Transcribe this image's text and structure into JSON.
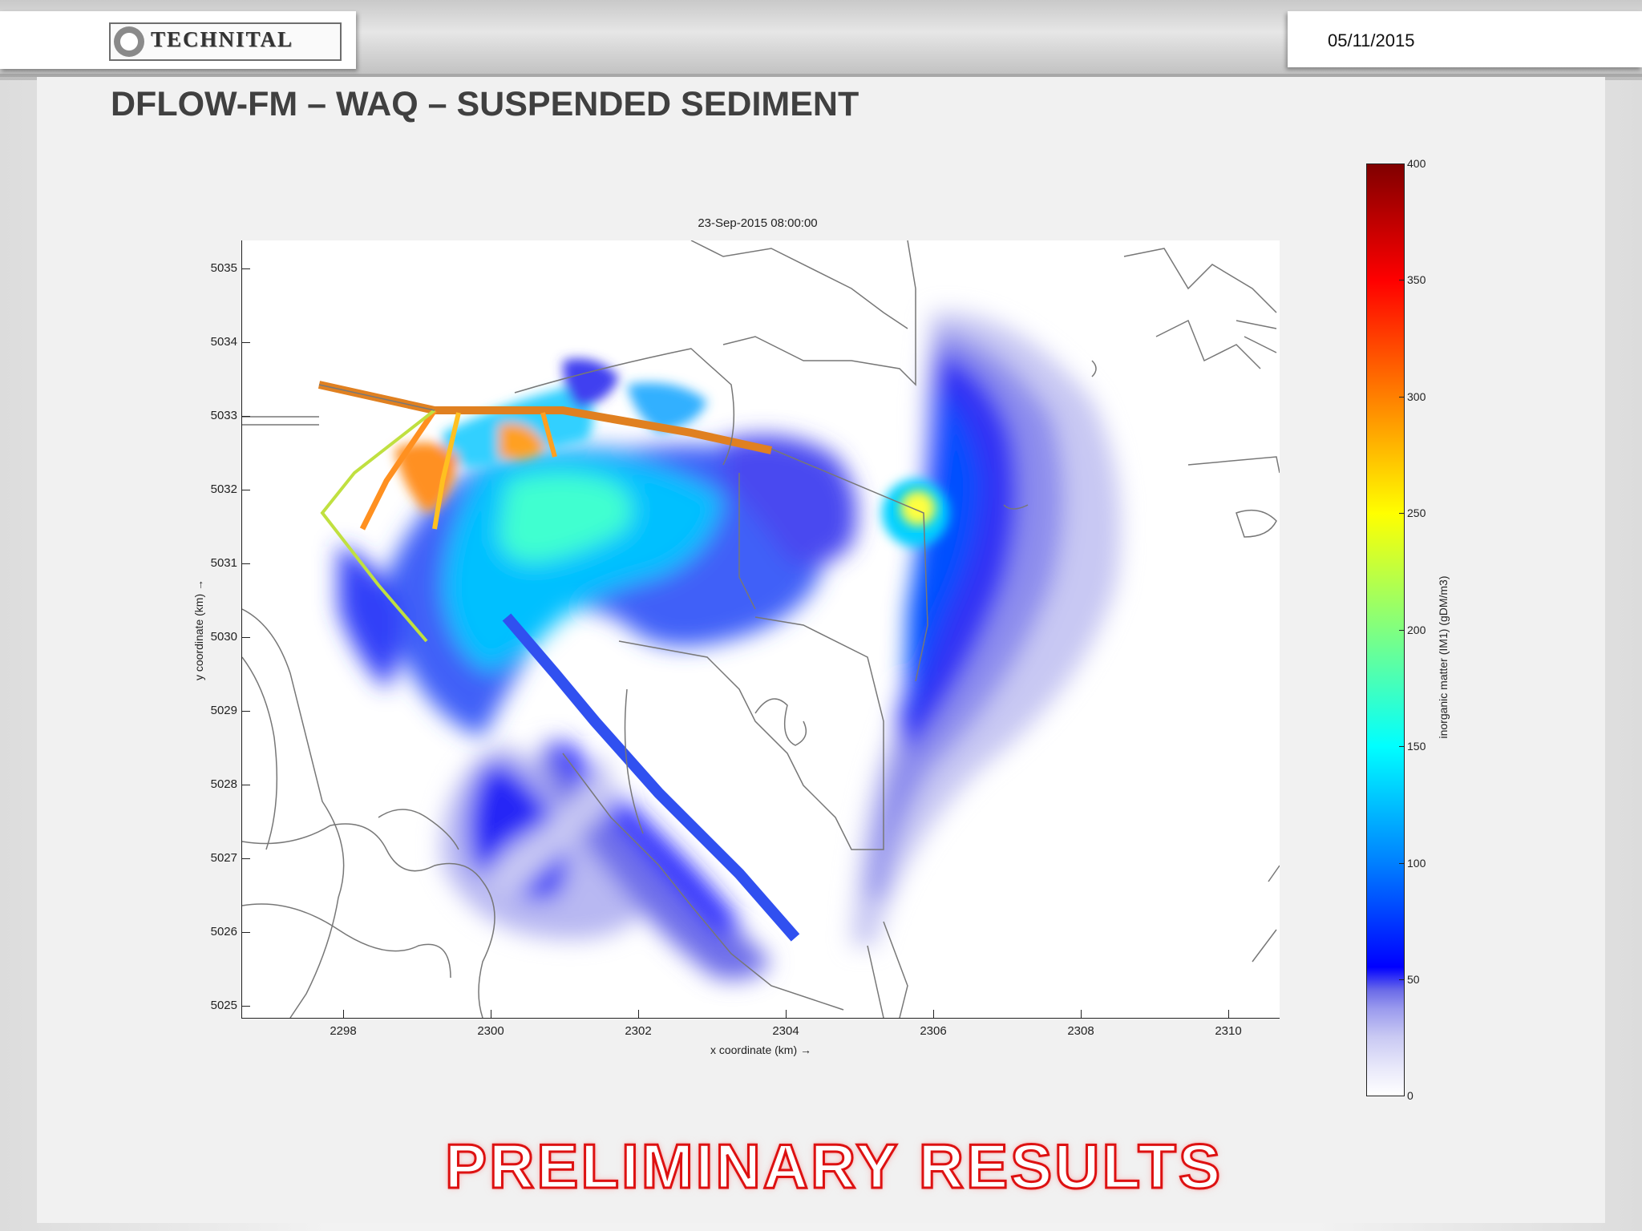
{
  "header": {
    "logo_text": "TECHNITAL",
    "date": "05/11/2015",
    "title": "DFLOW-FM – WAQ – SUSPENDED SEDIMENT"
  },
  "watermark": "PRELIMINARY RESULTS",
  "chart_data": {
    "type": "heatmap",
    "title": "23-Sep-2015 08:00:00",
    "xlabel": "x coordinate (km) →",
    "ylabel": "y coordinate (km) →",
    "xlim": [
      2296.7,
      2310.8
    ],
    "ylim": [
      5024.85,
      5035.4
    ],
    "xticks": [
      2298,
      2300,
      2302,
      2304,
      2306,
      2308,
      2310
    ],
    "yticks": [
      5025,
      5026,
      5027,
      5028,
      5029,
      5030,
      5031,
      5032,
      5033,
      5034,
      5035
    ],
    "colorbar": {
      "label": "inorganic matter (IM1) (gDM/m3)",
      "range": [
        0,
        400
      ],
      "ticks": [
        0,
        50,
        100,
        150,
        200,
        250,
        300,
        350,
        400
      ],
      "colormap": "jet with light-lavender low end",
      "colors": [
        "#ffffff",
        "#e8e8fa",
        "#c9c9f3",
        "#9b9bee",
        "#6b6be8",
        "#0000ff",
        "#0080ff",
        "#00ffff",
        "#80ff80",
        "#ffff00",
        "#ff8000",
        "#ff0000",
        "#800000"
      ]
    }
  }
}
